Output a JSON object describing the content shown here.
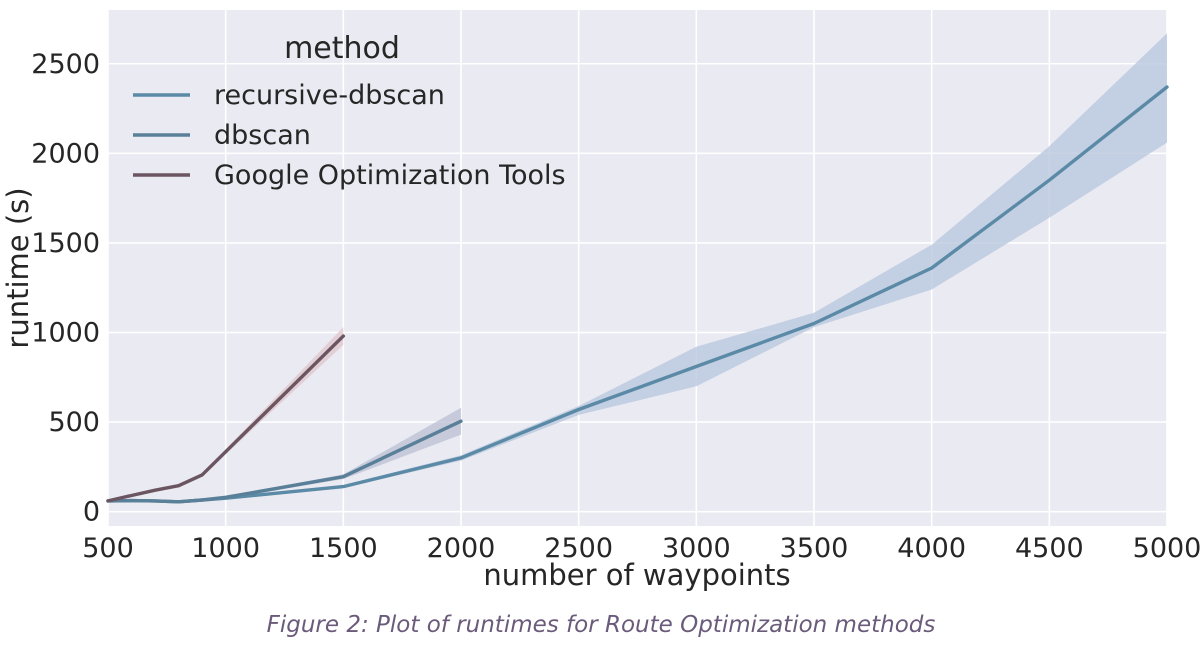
{
  "chart_data": {
    "type": "line",
    "title": "",
    "xlabel": "number of waypoints",
    "ylabel": "runtime (s)",
    "xlim": [
      500,
      5000
    ],
    "ylim": [
      -80,
      2800
    ],
    "x_ticks": [
      500,
      1000,
      1500,
      2000,
      2500,
      3000,
      3500,
      4000,
      4500,
      5000
    ],
    "y_ticks": [
      0,
      500,
      1000,
      1500,
      2000,
      2500
    ],
    "grid": true,
    "legend": {
      "title": "method",
      "position": "top-left"
    },
    "series": [
      {
        "name": "recursive-dbscan",
        "color": "#5b8aa6",
        "band_color": "#b6c6dc",
        "x": [
          500,
          600,
          700,
          800,
          900,
          1000,
          1500,
          2000,
          2500,
          3000,
          3500,
          4000,
          4500,
          5000
        ],
        "y": [
          60,
          62,
          60,
          55,
          65,
          75,
          140,
          300,
          570,
          810,
          1050,
          1360,
          1850,
          2370
        ],
        "y_lower": [
          55,
          57,
          55,
          50,
          60,
          70,
          132,
          285,
          540,
          700,
          1030,
          1240,
          1640,
          2060
        ],
        "y_upper": [
          65,
          67,
          65,
          60,
          70,
          80,
          148,
          315,
          590,
          920,
          1110,
          1490,
          2040,
          2670
        ]
      },
      {
        "name": "dbscan",
        "color": "#5a7f98",
        "band_color": "#bbbfd3",
        "x": [
          500,
          600,
          700,
          800,
          900,
          1000,
          1500,
          2000
        ],
        "y": [
          60,
          62,
          60,
          55,
          65,
          80,
          195,
          505
        ],
        "y_lower": [
          55,
          57,
          55,
          50,
          60,
          74,
          182,
          430
        ],
        "y_upper": [
          65,
          67,
          65,
          60,
          70,
          86,
          208,
          580
        ]
      },
      {
        "name": "Google Optimization Tools",
        "color": "#6a5560",
        "band_color": "#dfc6cc",
        "x": [
          500,
          600,
          700,
          800,
          900,
          1500
        ],
        "y": [
          60,
          90,
          120,
          145,
          205,
          980
        ],
        "y_lower": [
          56,
          86,
          115,
          140,
          198,
          930
        ],
        "y_upper": [
          64,
          94,
          125,
          150,
          212,
          1030
        ]
      }
    ]
  },
  "caption": "Figure 2: Plot of runtimes for Route Optimization methods"
}
